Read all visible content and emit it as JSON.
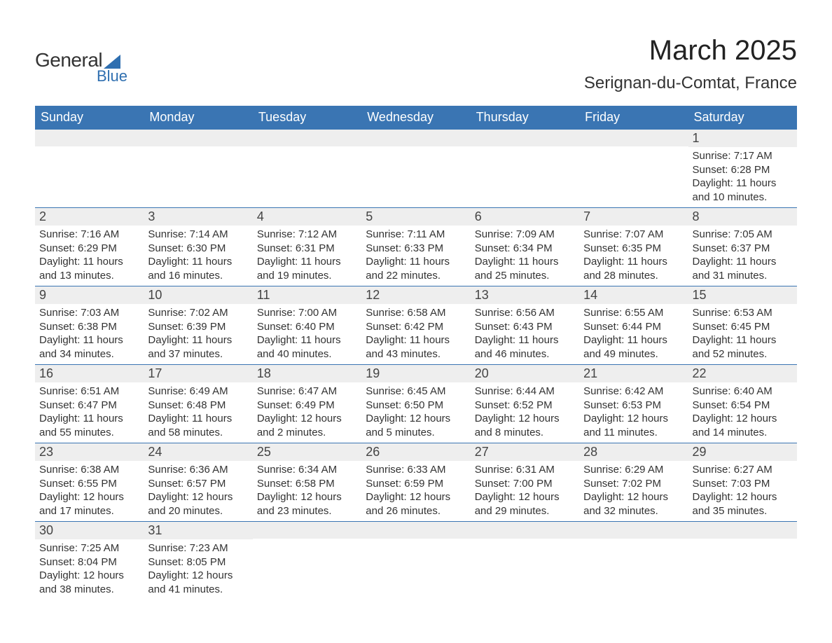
{
  "colors": {
    "header_bg": "#3a75b3",
    "header_text": "#ffffff",
    "row_day_bg": "#eeeeee",
    "row_border": "#3a75b3",
    "body_text": "#333333",
    "logo_accent": "#2f6fb0",
    "background": "#ffffff"
  },
  "typography": {
    "font_family": "Arial, Helvetica, sans-serif",
    "month_title_fontsize": 40,
    "location_fontsize": 24,
    "weekday_fontsize": 18,
    "daynum_fontsize": 18,
    "cell_fontsize": 15,
    "logo_fontsize_main": 28,
    "logo_fontsize_sub": 22
  },
  "labels": {
    "sunrise": "Sunrise:",
    "sunset": "Sunset:",
    "daylight": "Daylight:"
  },
  "logo": {
    "text1": "General",
    "text2": "Blue"
  },
  "title": "March 2025",
  "location": "Serignan-du-Comtat, France",
  "weekdays": [
    "Sunday",
    "Monday",
    "Tuesday",
    "Wednesday",
    "Thursday",
    "Friday",
    "Saturday"
  ],
  "weeks": [
    [
      null,
      null,
      null,
      null,
      null,
      null,
      {
        "d": "1",
        "sr": "7:17 AM",
        "ss": "6:28 PM",
        "dl": "11 hours and 10 minutes."
      }
    ],
    [
      {
        "d": "2",
        "sr": "7:16 AM",
        "ss": "6:29 PM",
        "dl": "11 hours and 13 minutes."
      },
      {
        "d": "3",
        "sr": "7:14 AM",
        "ss": "6:30 PM",
        "dl": "11 hours and 16 minutes."
      },
      {
        "d": "4",
        "sr": "7:12 AM",
        "ss": "6:31 PM",
        "dl": "11 hours and 19 minutes."
      },
      {
        "d": "5",
        "sr": "7:11 AM",
        "ss": "6:33 PM",
        "dl": "11 hours and 22 minutes."
      },
      {
        "d": "6",
        "sr": "7:09 AM",
        "ss": "6:34 PM",
        "dl": "11 hours and 25 minutes."
      },
      {
        "d": "7",
        "sr": "7:07 AM",
        "ss": "6:35 PM",
        "dl": "11 hours and 28 minutes."
      },
      {
        "d": "8",
        "sr": "7:05 AM",
        "ss": "6:37 PM",
        "dl": "11 hours and 31 minutes."
      }
    ],
    [
      {
        "d": "9",
        "sr": "7:03 AM",
        "ss": "6:38 PM",
        "dl": "11 hours and 34 minutes."
      },
      {
        "d": "10",
        "sr": "7:02 AM",
        "ss": "6:39 PM",
        "dl": "11 hours and 37 minutes."
      },
      {
        "d": "11",
        "sr": "7:00 AM",
        "ss": "6:40 PM",
        "dl": "11 hours and 40 minutes."
      },
      {
        "d": "12",
        "sr": "6:58 AM",
        "ss": "6:42 PM",
        "dl": "11 hours and 43 minutes."
      },
      {
        "d": "13",
        "sr": "6:56 AM",
        "ss": "6:43 PM",
        "dl": "11 hours and 46 minutes."
      },
      {
        "d": "14",
        "sr": "6:55 AM",
        "ss": "6:44 PM",
        "dl": "11 hours and 49 minutes."
      },
      {
        "d": "15",
        "sr": "6:53 AM",
        "ss": "6:45 PM",
        "dl": "11 hours and 52 minutes."
      }
    ],
    [
      {
        "d": "16",
        "sr": "6:51 AM",
        "ss": "6:47 PM",
        "dl": "11 hours and 55 minutes."
      },
      {
        "d": "17",
        "sr": "6:49 AM",
        "ss": "6:48 PM",
        "dl": "11 hours and 58 minutes."
      },
      {
        "d": "18",
        "sr": "6:47 AM",
        "ss": "6:49 PM",
        "dl": "12 hours and 2 minutes."
      },
      {
        "d": "19",
        "sr": "6:45 AM",
        "ss": "6:50 PM",
        "dl": "12 hours and 5 minutes."
      },
      {
        "d": "20",
        "sr": "6:44 AM",
        "ss": "6:52 PM",
        "dl": "12 hours and 8 minutes."
      },
      {
        "d": "21",
        "sr": "6:42 AM",
        "ss": "6:53 PM",
        "dl": "12 hours and 11 minutes."
      },
      {
        "d": "22",
        "sr": "6:40 AM",
        "ss": "6:54 PM",
        "dl": "12 hours and 14 minutes."
      }
    ],
    [
      {
        "d": "23",
        "sr": "6:38 AM",
        "ss": "6:55 PM",
        "dl": "12 hours and 17 minutes."
      },
      {
        "d": "24",
        "sr": "6:36 AM",
        "ss": "6:57 PM",
        "dl": "12 hours and 20 minutes."
      },
      {
        "d": "25",
        "sr": "6:34 AM",
        "ss": "6:58 PM",
        "dl": "12 hours and 23 minutes."
      },
      {
        "d": "26",
        "sr": "6:33 AM",
        "ss": "6:59 PM",
        "dl": "12 hours and 26 minutes."
      },
      {
        "d": "27",
        "sr": "6:31 AM",
        "ss": "7:00 PM",
        "dl": "12 hours and 29 minutes."
      },
      {
        "d": "28",
        "sr": "6:29 AM",
        "ss": "7:02 PM",
        "dl": "12 hours and 32 minutes."
      },
      {
        "d": "29",
        "sr": "6:27 AM",
        "ss": "7:03 PM",
        "dl": "12 hours and 35 minutes."
      }
    ],
    [
      {
        "d": "30",
        "sr": "7:25 AM",
        "ss": "8:04 PM",
        "dl": "12 hours and 38 minutes."
      },
      {
        "d": "31",
        "sr": "7:23 AM",
        "ss": "8:05 PM",
        "dl": "12 hours and 41 minutes."
      },
      null,
      null,
      null,
      null,
      null
    ]
  ]
}
